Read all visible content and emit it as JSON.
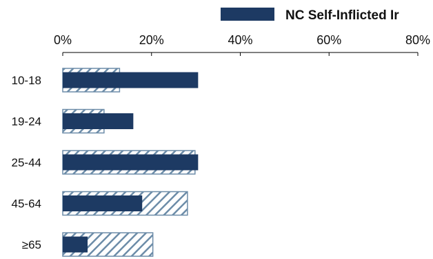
{
  "chart_data": {
    "type": "bar",
    "orientation": "horizontal",
    "categories": [
      "10-18",
      "19-24",
      "25-44",
      "45-64",
      "≥65"
    ],
    "series": [
      {
        "name": "",
        "pattern": "hatched",
        "values": [
          12.8,
          9.3,
          29.8,
          28.1,
          20.3
        ]
      },
      {
        "name": "NC Self-Inflicted Ir",
        "pattern": "solid",
        "values": [
          30.5,
          15.9,
          30.5,
          17.9,
          5.6
        ]
      }
    ],
    "xlim": [
      0,
      80
    ],
    "xticks": [
      "0%",
      "20%",
      "40%",
      "60%",
      "80%"
    ],
    "axis_position": "top",
    "legend_position": "top-right",
    "grid": false
  },
  "colors": {
    "solid": "#1d3a63",
    "hatch_stroke": "#6c8ca8",
    "hatch_fill": "#ffffff",
    "axis": "#000000"
  }
}
